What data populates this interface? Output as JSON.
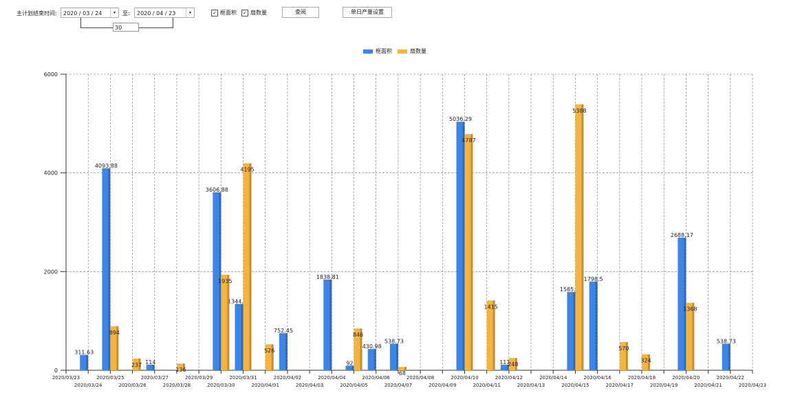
{
  "toolbar": {
    "range_label": "主计划结束时间:",
    "start_date": "2020 / 03 / 24",
    "to_label": "至:",
    "end_date": "2020 / 04 / 23",
    "days": "30",
    "check_area": "框面积",
    "check_count": "扇数量",
    "query_button": "查阅",
    "settings_button": "单日产量设置"
  },
  "colors": {
    "area": "#3d86e8",
    "count": "#f5b342"
  },
  "chart_data": {
    "type": "bar",
    "ylim": [
      0,
      6000
    ],
    "yticks": [
      0,
      2000,
      4000,
      6000
    ],
    "grid": true,
    "legend": "top-center",
    "categories": [
      "2020/03/23",
      "2020/03/24",
      "2020/03/25",
      "2020/03/26",
      "2020/03/27",
      "2020/03/28",
      "2020/03/29",
      "2020/03/30",
      "2020/03/31",
      "2020/04/01",
      "2020/04/02",
      "2020/04/03",
      "2020/04/04",
      "2020/04/05",
      "2020/04/06",
      "2020/04/07",
      "2020/04/08",
      "2020/04/09",
      "2020/04/10",
      "2020/04/11",
      "2020/04/12",
      "2020/04/13",
      "2020/04/14",
      "2020/04/15",
      "2020/04/16",
      "2020/04/17",
      "2020/04/18",
      "2020/04/19",
      "2020/04/20",
      "2020/04/21",
      "2020/04/22",
      "2020/04/23"
    ],
    "series": [
      {
        "name": "框面积",
        "values": [
          0,
          311.63,
          4093.88,
          0,
          114,
          0,
          0,
          3606.88,
          1344.95,
          0,
          752.45,
          0,
          1838.81,
          92,
          430.98,
          538.73,
          0,
          0,
          5036.29,
          0,
          111,
          0,
          0,
          1585.96,
          1798.5,
          0,
          0,
          0,
          2688.17,
          0,
          538.73,
          0
        ]
      },
      {
        "name": "扇数量",
        "values": [
          0,
          0,
          894,
          237,
          0,
          136,
          0,
          1935,
          4195,
          526,
          0,
          0,
          0,
          846,
          0,
          68,
          0,
          0,
          4787,
          1415,
          248,
          0,
          0,
          5388,
          0,
          570,
          324,
          0,
          1368,
          0,
          0,
          0
        ]
      }
    ]
  }
}
